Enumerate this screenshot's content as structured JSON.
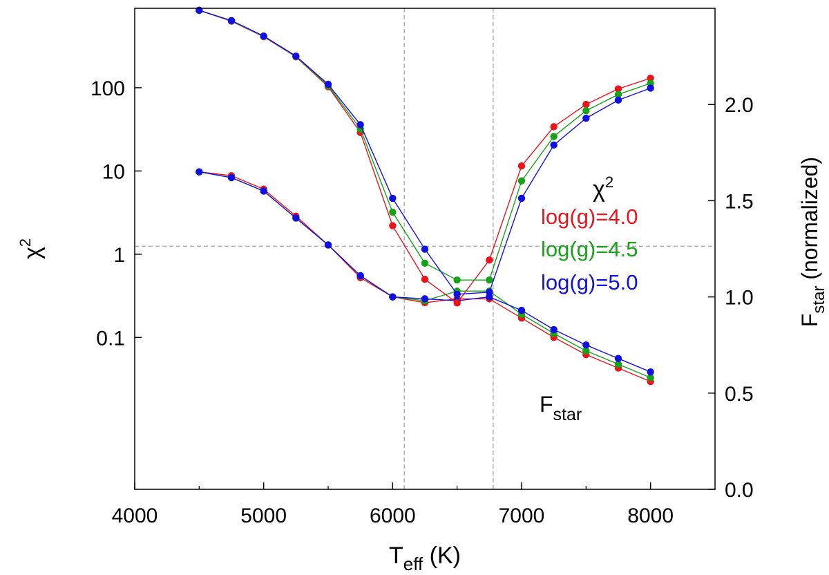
{
  "chart_data": {
    "type": "line",
    "x_axis": {
      "label_main": "T",
      "label_sub": "eff",
      "label_unit": " (K)",
      "range": [
        4000,
        8500
      ],
      "ticks": [
        4000,
        5000,
        6000,
        7000,
        8000
      ],
      "tick_labels": [
        "4000",
        "5000",
        "6000",
        "7000",
        "8000"
      ]
    },
    "y_left": {
      "label_main": "χ",
      "label_sup": "2",
      "scale": "log",
      "range": [
        0.0015,
        900
      ],
      "ticks": [
        0.1,
        1,
        10,
        100
      ],
      "tick_labels": [
        "0.1",
        "1",
        "10",
        "100"
      ]
    },
    "y_right": {
      "label_main": "F",
      "label_sub": "star",
      "label_unit": " (normalized)",
      "range": [
        0.0,
        2.5
      ],
      "ticks": [
        0.0,
        0.5,
        1.0,
        1.5,
        2.0
      ],
      "tick_labels": [
        "0.0",
        "0.5",
        "1.0",
        "1.5",
        "2.0"
      ]
    },
    "reference_lines": {
      "vertical_x": [
        6090,
        6780
      ],
      "horizontal_chi2": 1.25
    },
    "annotations": {
      "chi2_title_main": "χ",
      "chi2_title_sup": "2",
      "flux_title_main": "F",
      "flux_title_sub": "star"
    },
    "x": [
      4500,
      4750,
      5000,
      5250,
      5500,
      5750,
      6000,
      6250,
      6500,
      6750,
      7000,
      7250,
      7500,
      7750,
      8000
    ],
    "series_chi2": [
      {
        "name": "log(g)=4.0",
        "color": "#e8151b",
        "values": [
          850,
          630,
          410,
          235,
          103,
          29,
          2.2,
          0.5,
          0.26,
          0.85,
          11.5,
          34,
          63,
          97,
          130
        ]
      },
      {
        "name": "log(g)=4.5",
        "color": "#17a21a",
        "values": [
          850,
          635,
          415,
          238,
          106,
          32,
          3.2,
          0.78,
          0.49,
          0.49,
          7.6,
          26,
          53,
          83,
          113
        ]
      },
      {
        "name": "log(g)=5.0",
        "color": "#1010e0",
        "values": [
          852,
          640,
          418,
          240,
          110,
          36,
          4.7,
          1.15,
          0.33,
          0.35,
          4.7,
          20.5,
          43,
          71,
          99
        ]
      }
    ],
    "series_flux": [
      {
        "name": "log(g)=4.0",
        "color": "#e8151b",
        "values": [
          1.65,
          1.63,
          1.56,
          1.42,
          1.27,
          1.1,
          1.0,
          0.97,
          0.99,
          0.99,
          0.89,
          0.79,
          0.7,
          0.63,
          0.56
        ]
      },
      {
        "name": "log(g)=4.5",
        "color": "#17a21a",
        "values": [
          1.65,
          1.62,
          1.55,
          1.41,
          1.27,
          1.11,
          1.0,
          0.98,
          1.03,
          1.03,
          0.91,
          0.81,
          0.72,
          0.65,
          0.58
        ]
      },
      {
        "name": "log(g)=5.0",
        "color": "#1010e0",
        "values": [
          1.65,
          1.62,
          1.55,
          1.41,
          1.27,
          1.11,
          1.0,
          0.99,
          0.98,
          1.0,
          0.93,
          0.83,
          0.75,
          0.68,
          0.61
        ]
      }
    ]
  }
}
